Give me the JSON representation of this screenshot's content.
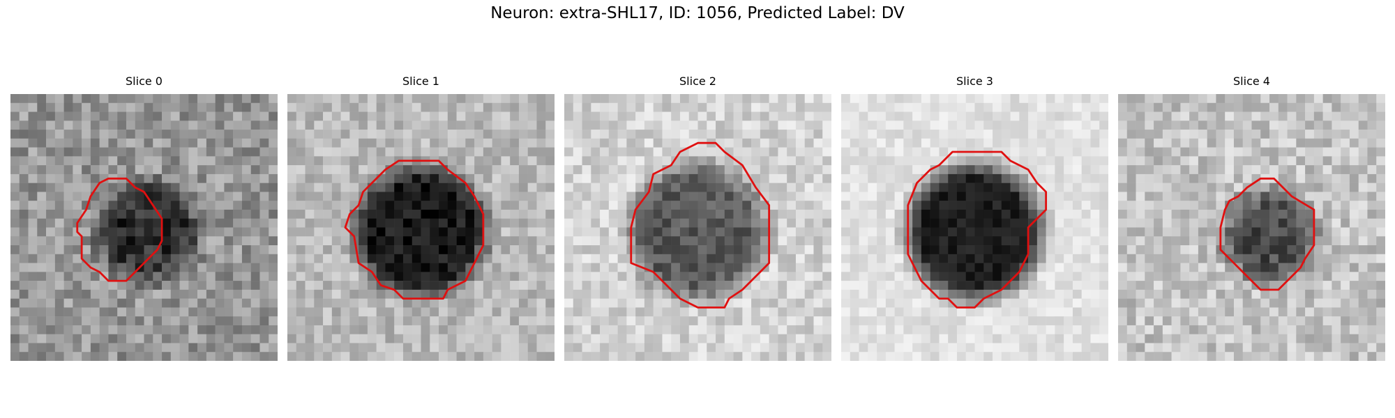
{
  "figure": {
    "title": "Neuron: extra-SHL17, ID: 1056, Predicted Label: DV",
    "contour_color": "#e01010"
  },
  "panels": [
    {
      "title": "Slice 0"
    },
    {
      "title": "Slice 1"
    },
    {
      "title": "Slice 2"
    },
    {
      "title": "Slice 3"
    },
    {
      "title": "Slice 4"
    }
  ]
}
